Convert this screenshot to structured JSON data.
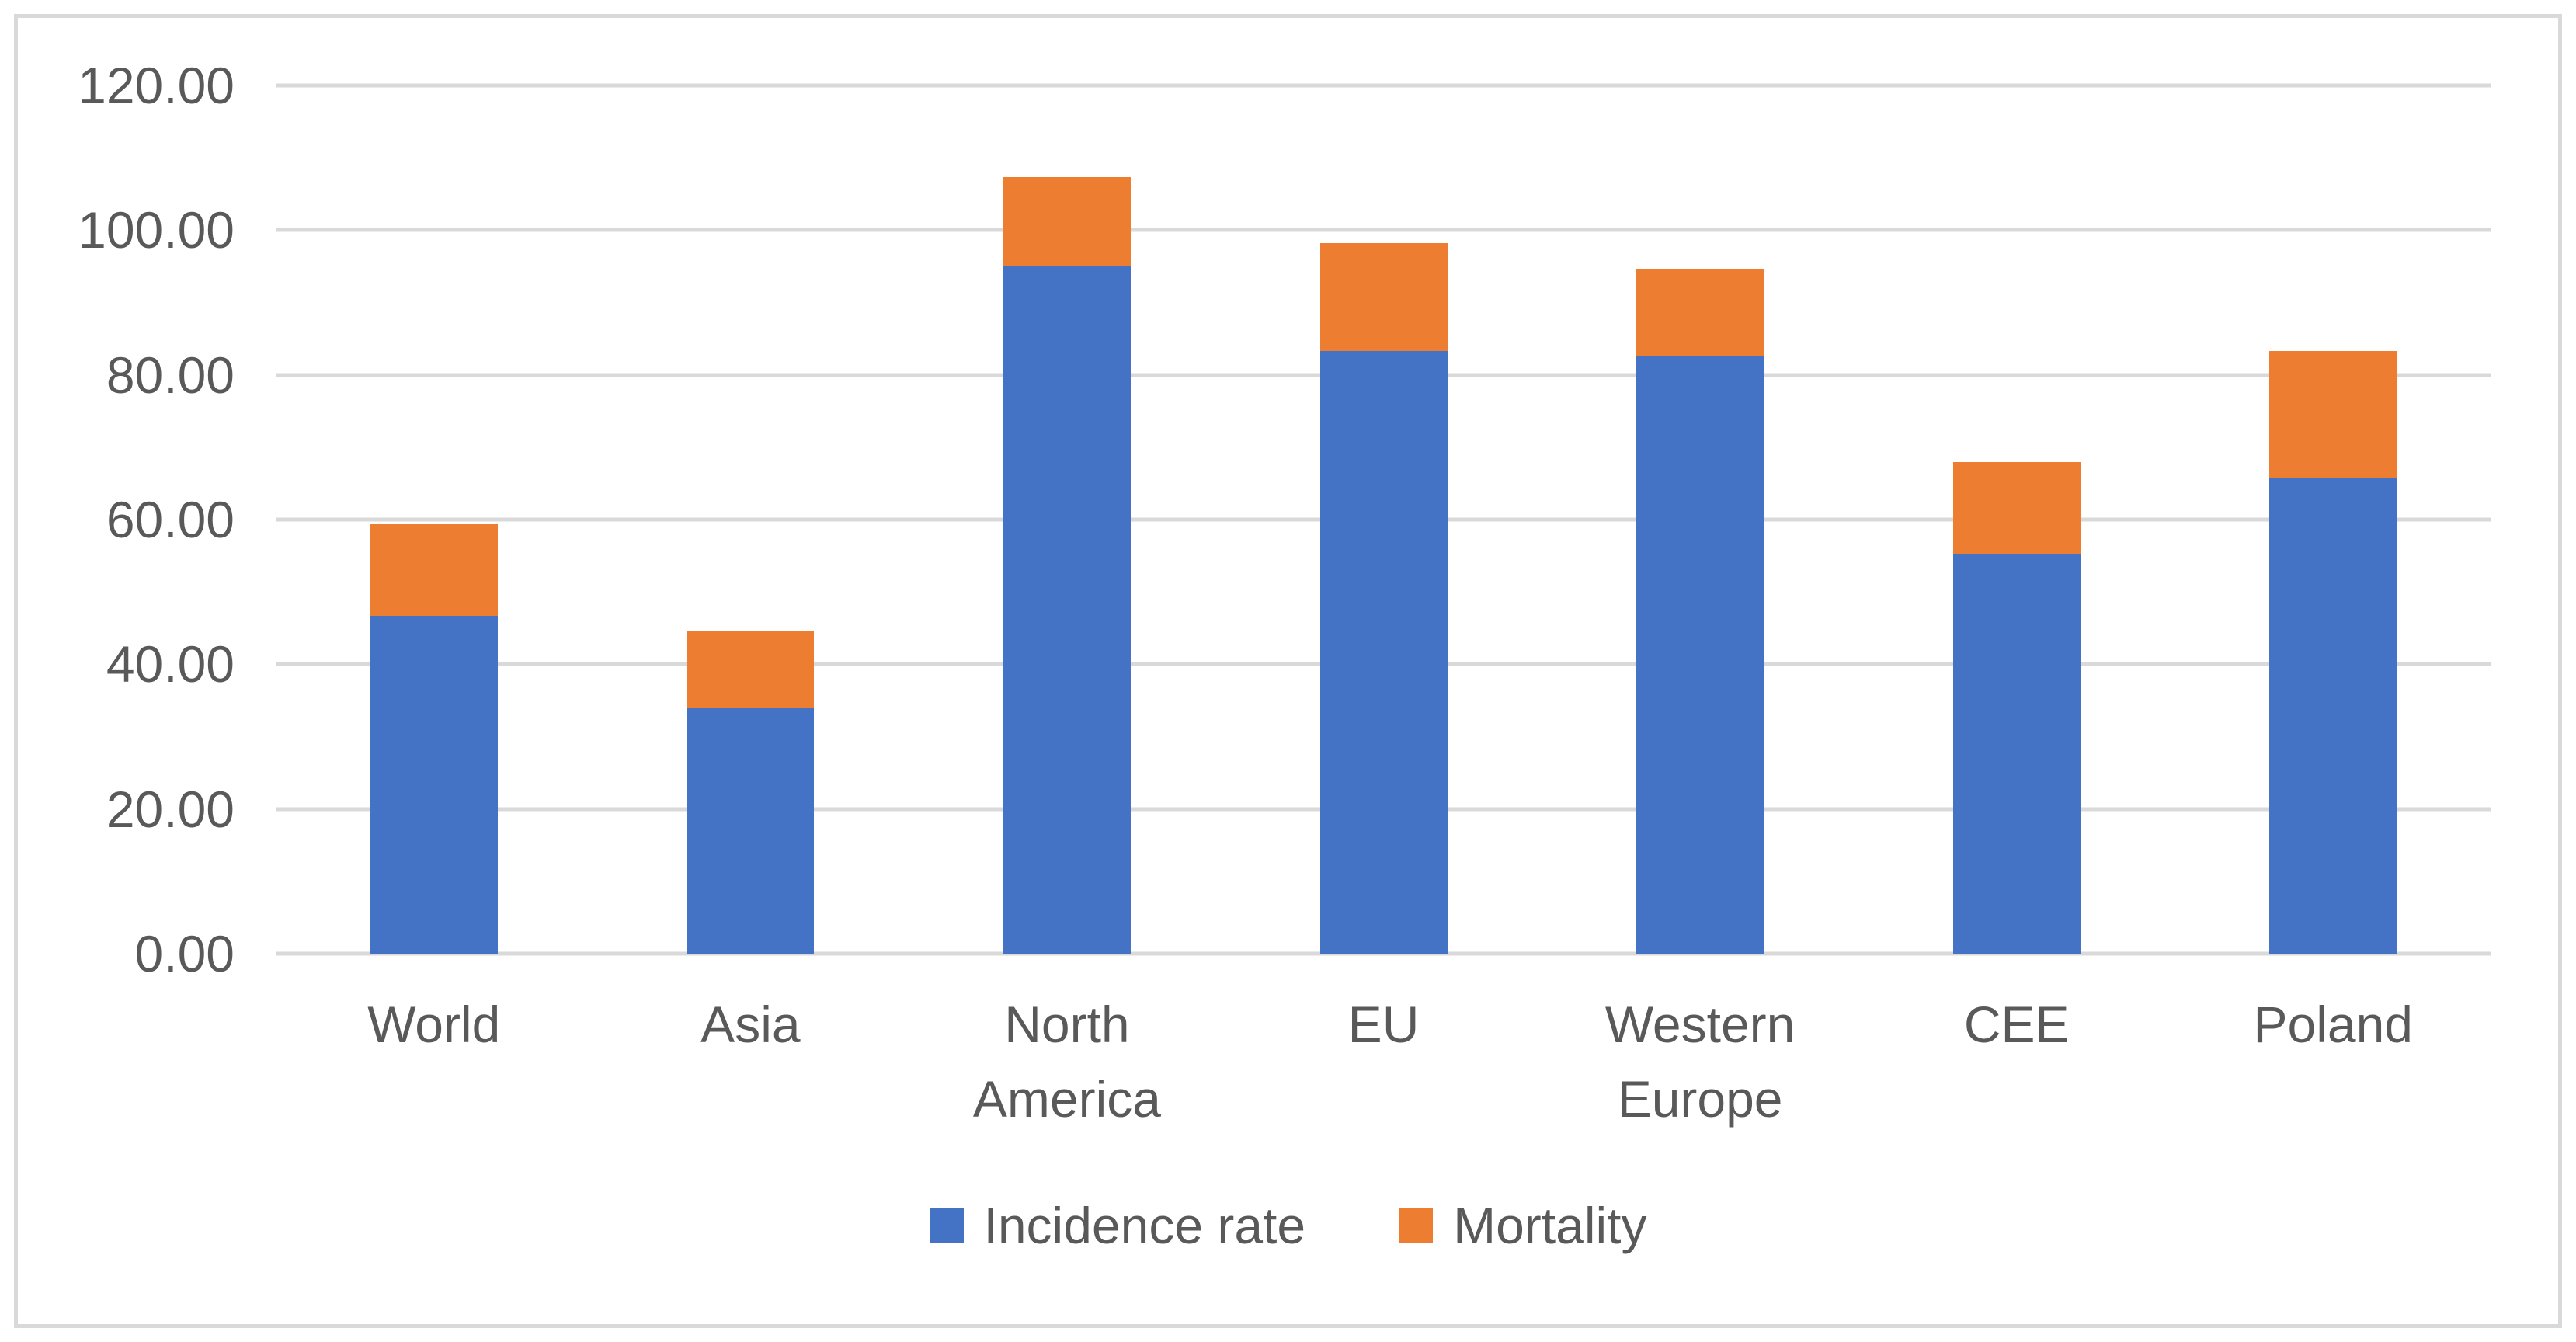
{
  "figure": {
    "background": "#FFFFFF",
    "border_color": "#D9D9D9",
    "gridline_color": "#D9D9D9",
    "text_color": "#595959"
  },
  "chart_data": {
    "type": "bar",
    "stacked": true,
    "title": "",
    "xlabel": "",
    "ylabel": "",
    "ylim": [
      0,
      120
    ],
    "ytick_step": 20,
    "y_ticks": [
      "0.00",
      "20.00",
      "40.00",
      "60.00",
      "80.00",
      "100.00",
      "120.00"
    ],
    "grid": true,
    "legend_position": "bottom",
    "categories": [
      "World",
      "Asia",
      "North America",
      "EU",
      "Western Europe",
      "CEE",
      "Poland"
    ],
    "series": [
      {
        "name": "Incidence rate",
        "color": "#4472C4",
        "values": [
          46.7,
          34.0,
          95.0,
          83.3,
          82.7,
          55.3,
          65.8
        ]
      },
      {
        "name": "Mortality",
        "color": "#ED7D31",
        "values": [
          12.7,
          10.6,
          12.3,
          14.9,
          12.0,
          12.6,
          17.5
        ]
      }
    ],
    "stacked_totals": [
      59.4,
      44.6,
      107.3,
      98.2,
      94.7,
      67.9,
      83.3
    ]
  }
}
